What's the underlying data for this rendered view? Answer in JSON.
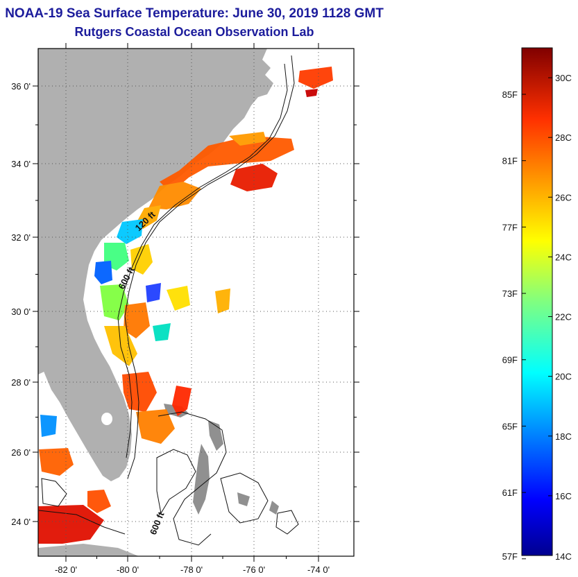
{
  "title": {
    "line1": "NOAA-19 Sea Surface Temperature:  June 30, 2019 1128 GMT",
    "line2": "Rutgers Coastal Ocean Observation Lab"
  },
  "map": {
    "lat_labels": [
      "36 0'",
      "34 0'",
      "32 0'",
      "30 0'",
      "28 0'",
      "26 0'",
      "24 0'"
    ],
    "lon_labels": [
      "-82 0'",
      "-80 0'",
      "-78 0'",
      "-76 0'",
      "-74 0'"
    ],
    "isobath_labels": [
      "120 ft",
      "600 ft",
      "600 ft"
    ]
  },
  "colorbar": {
    "fahrenheit_labels": [
      "85F",
      "81F",
      "77F",
      "73F",
      "69F",
      "65F",
      "61F",
      "57F"
    ],
    "celsius_labels": [
      "30C",
      "28C",
      "26C",
      "24C",
      "22C",
      "20C",
      "18C",
      "16C",
      "14C"
    ],
    "range_c": [
      14,
      31
    ]
  },
  "colors": {
    "land": "#b0b0b0",
    "title": "#1c1c9c",
    "cold": "#00008f",
    "warm": "#800000"
  }
}
